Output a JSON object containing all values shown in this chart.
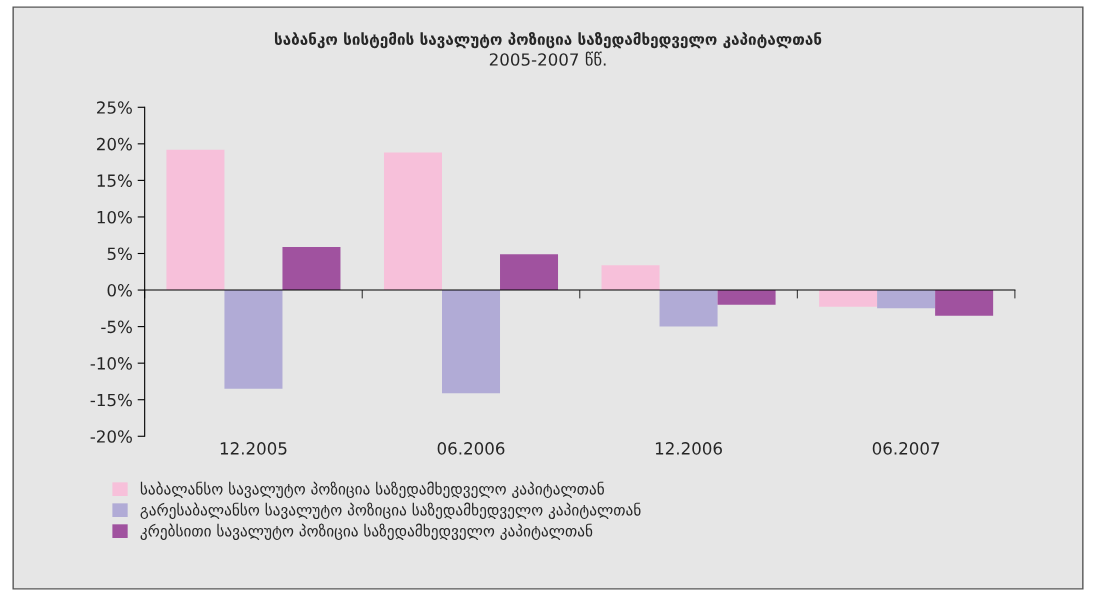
{
  "chart_data": {
    "type": "bar",
    "title": "საბანკო სისტემის სავალუტო პოზიცია საზედამხედველო კაპიტალთან",
    "subtitle": "2005-2007 წწ.",
    "categories": [
      "12.2005",
      "06.2006",
      "12.2006",
      "06.2007"
    ],
    "series": [
      {
        "name": "საბალანსო სავალუტო პოზიცია საზედამხედველო კაპიტალთან",
        "color": "#f7c0da",
        "values": [
          19.2,
          18.8,
          3.4,
          -2.3
        ]
      },
      {
        "name": "გარესაბალანსო სავალუტო პოზიცია საზედამხედველო კაპიტალთან",
        "color": "#b1abd6",
        "values": [
          -13.5,
          -14.1,
          -5.0,
          -2.5
        ]
      },
      {
        "name": "კრებსითი სავალუტო პოზიცია საზედამხედველო კაპიტალთან",
        "color": "#a0529f",
        "values": [
          5.9,
          4.9,
          -2.0,
          -3.5
        ]
      }
    ],
    "ylim": [
      -20,
      25
    ],
    "yticks": [
      {
        "value": -20,
        "label": "-20%"
      },
      {
        "value": -15,
        "label": "-15%"
      },
      {
        "value": -10,
        "label": "-10%"
      },
      {
        "value": -5,
        "label": "-5%"
      },
      {
        "value": 0,
        "label": "0%"
      },
      {
        "value": 5,
        "label": "5%"
      },
      {
        "value": 10,
        "label": "10%"
      },
      {
        "value": 15,
        "label": "15%"
      },
      {
        "value": 20,
        "label": "20%"
      },
      {
        "value": 25,
        "label": "25%"
      }
    ],
    "legend": "bottom left"
  }
}
